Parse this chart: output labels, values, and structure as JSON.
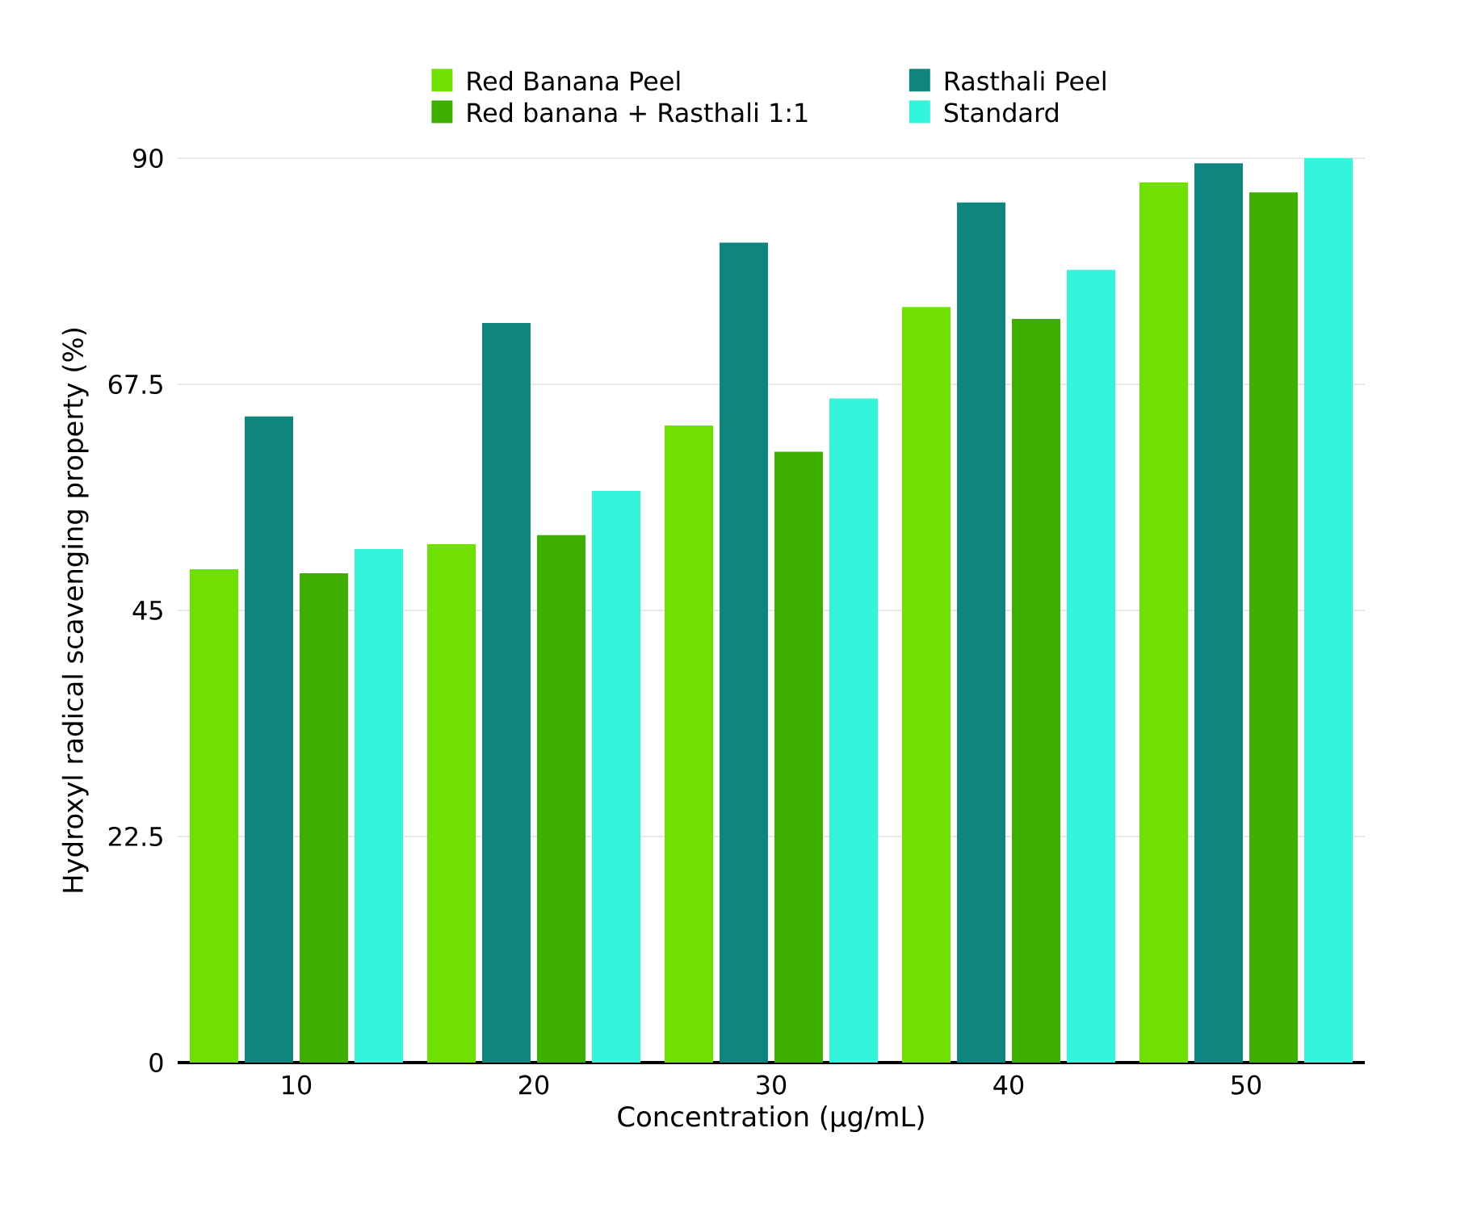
{
  "chart_data": {
    "type": "bar",
    "xlabel": "Concentration (µg/mL)",
    "ylabel": "Hydroxyl radical scavenging property (%)",
    "categories": [
      "10",
      "20",
      "30",
      "40",
      "50"
    ],
    "series": [
      {
        "name": "Red Banana Peel",
        "color": "#6fe000",
        "values": [
          49.1,
          51.6,
          63.4,
          75.2,
          87.6
        ]
      },
      {
        "name": "Rasthali Peel",
        "color": "#0f8580",
        "values": [
          64.3,
          73.6,
          81.6,
          85.6,
          89.5
        ]
      },
      {
        "name": "Red banana + Rasthali 1:1",
        "color": "#3daf00",
        "values": [
          48.7,
          52.5,
          60.8,
          74.0,
          86.6
        ]
      },
      {
        "name": "Standard",
        "color": "#33f5dc",
        "values": [
          51.1,
          56.9,
          66.1,
          78.9,
          90.0
        ]
      }
    ],
    "ylim": [
      0,
      90
    ],
    "yticks": [
      0,
      {
        "value": 22.5,
        "label": "22.5"
      },
      45,
      {
        "value": 67.5,
        "label": "67.5"
      },
      90
    ],
    "grid": "y",
    "legend": "top"
  }
}
